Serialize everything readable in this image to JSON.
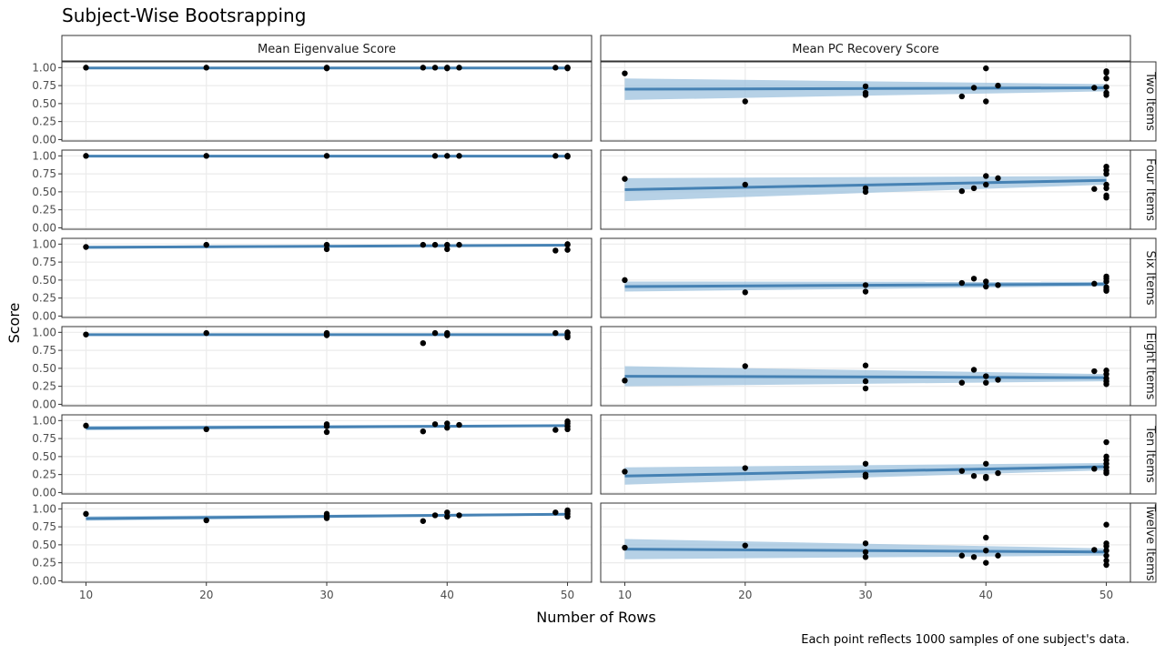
{
  "chart_data": {
    "type": "scatter",
    "title": "Subject-Wise Bootsrapping",
    "xlabel": "Number of Rows",
    "ylabel": "Score",
    "caption": "Each point reflects 1000 samples of one subject's data.",
    "xlim": [
      8,
      52
    ],
    "ylim": [
      -0.02,
      1.08
    ],
    "x_ticks": [
      "10",
      "20",
      "30",
      "40",
      "50"
    ],
    "y_ticks": [
      "0.00",
      "0.25",
      "0.50",
      "0.75",
      "1.00"
    ],
    "grid": true,
    "columns": [
      "Mean Eigenvalue Score",
      "Mean PC Recovery Score"
    ],
    "rows": [
      "Two Items",
      "Four Items",
      "Six Items",
      "Eight Items",
      "Ten Items",
      "Twelve Items"
    ],
    "colors": {
      "fit_line": "#4682b4",
      "band": "#9ec1de",
      "point": "#000000",
      "strip_bg": "#ffffff",
      "grid": "#ebebeb"
    },
    "panels": [
      {
        "row": "Two Items",
        "column": "Mean Eigenvalue Score",
        "points": [
          [
            10,
            1.0
          ],
          [
            20,
            1.0
          ],
          [
            30,
            1.0
          ],
          [
            30,
            0.99
          ],
          [
            38,
            1.0
          ],
          [
            39,
            1.0
          ],
          [
            40,
            1.0
          ],
          [
            40,
            0.99
          ],
          [
            41,
            1.0
          ],
          [
            49,
            1.0
          ],
          [
            50,
            1.0
          ],
          [
            50,
            1.0
          ],
          [
            50,
            0.99
          ],
          [
            50,
            1.0
          ]
        ],
        "fit": {
          "start": 0.995,
          "end": 0.995,
          "band_start": 0.005,
          "band_end": 0.005
        }
      },
      {
        "row": "Two Items",
        "column": "Mean PC Recovery Score",
        "points": [
          [
            10,
            0.92
          ],
          [
            20,
            0.53
          ],
          [
            30,
            0.74
          ],
          [
            30,
            0.62
          ],
          [
            30,
            0.65
          ],
          [
            38,
            0.6
          ],
          [
            39,
            0.72
          ],
          [
            40,
            0.99
          ],
          [
            40,
            0.53
          ],
          [
            41,
            0.75
          ],
          [
            49,
            0.72
          ],
          [
            50,
            0.95
          ],
          [
            50,
            0.93
          ],
          [
            50,
            0.85
          ],
          [
            50,
            0.73
          ],
          [
            50,
            0.65
          ],
          [
            50,
            0.62
          ]
        ],
        "fit": {
          "start": 0.7,
          "end": 0.72,
          "band_start": 0.15,
          "band_end": 0.05
        }
      },
      {
        "row": "Four Items",
        "column": "Mean Eigenvalue Score",
        "points": [
          [
            10,
            1.0
          ],
          [
            20,
            1.0
          ],
          [
            30,
            1.0
          ],
          [
            39,
            1.0
          ],
          [
            40,
            1.0
          ],
          [
            41,
            1.0
          ],
          [
            49,
            1.0
          ],
          [
            50,
            1.0
          ],
          [
            50,
            0.99
          ],
          [
            50,
            1.0
          ]
        ],
        "fit": {
          "start": 0.997,
          "end": 0.997,
          "band_start": 0.004,
          "band_end": 0.004
        }
      },
      {
        "row": "Four Items",
        "column": "Mean PC Recovery Score",
        "points": [
          [
            10,
            0.68
          ],
          [
            20,
            0.6
          ],
          [
            30,
            0.55
          ],
          [
            30,
            0.5
          ],
          [
            38,
            0.51
          ],
          [
            39,
            0.55
          ],
          [
            40,
            0.72
          ],
          [
            40,
            0.6
          ],
          [
            41,
            0.69
          ],
          [
            49,
            0.54
          ],
          [
            50,
            0.85
          ],
          [
            50,
            0.8
          ],
          [
            50,
            0.75
          ],
          [
            50,
            0.6
          ],
          [
            50,
            0.55
          ],
          [
            50,
            0.45
          ],
          [
            50,
            0.42
          ]
        ],
        "fit": {
          "start": 0.53,
          "end": 0.66,
          "band_start": 0.16,
          "band_end": 0.06
        }
      },
      {
        "row": "Six Items",
        "column": "Mean Eigenvalue Score",
        "points": [
          [
            10,
            0.96
          ],
          [
            20,
            0.99
          ],
          [
            30,
            0.99
          ],
          [
            30,
            0.93
          ],
          [
            38,
            0.99
          ],
          [
            39,
            0.99
          ],
          [
            40,
            0.99
          ],
          [
            40,
            0.93
          ],
          [
            41,
            0.99
          ],
          [
            49,
            0.91
          ],
          [
            50,
            1.0
          ],
          [
            50,
            0.99
          ],
          [
            50,
            0.92
          ]
        ],
        "fit": {
          "start": 0.955,
          "end": 0.985,
          "band_start": 0.02,
          "band_end": 0.012
        }
      },
      {
        "row": "Six Items",
        "column": "Mean PC Recovery Score",
        "points": [
          [
            10,
            0.5
          ],
          [
            20,
            0.33
          ],
          [
            30,
            0.43
          ],
          [
            30,
            0.34
          ],
          [
            38,
            0.46
          ],
          [
            39,
            0.52
          ],
          [
            40,
            0.48
          ],
          [
            40,
            0.41
          ],
          [
            41,
            0.43
          ],
          [
            49,
            0.45
          ],
          [
            50,
            0.55
          ],
          [
            50,
            0.52
          ],
          [
            50,
            0.48
          ],
          [
            50,
            0.4
          ],
          [
            50,
            0.37
          ],
          [
            50,
            0.35
          ]
        ],
        "fit": {
          "start": 0.41,
          "end": 0.445,
          "band_start": 0.07,
          "band_end": 0.03
        }
      },
      {
        "row": "Eight Items",
        "column": "Mean Eigenvalue Score",
        "points": [
          [
            10,
            0.97
          ],
          [
            20,
            0.99
          ],
          [
            30,
            0.99
          ],
          [
            30,
            0.96
          ],
          [
            38,
            0.85
          ],
          [
            39,
            0.99
          ],
          [
            40,
            0.99
          ],
          [
            40,
            0.96
          ],
          [
            49,
            0.99
          ],
          [
            50,
            1.0
          ],
          [
            50,
            0.99
          ],
          [
            50,
            0.95
          ],
          [
            50,
            0.93
          ]
        ],
        "fit": {
          "start": 0.968,
          "end": 0.968,
          "band_start": 0.012,
          "band_end": 0.008
        }
      },
      {
        "row": "Eight Items",
        "column": "Mean PC Recovery Score",
        "points": [
          [
            10,
            0.33
          ],
          [
            20,
            0.53
          ],
          [
            30,
            0.54
          ],
          [
            30,
            0.32
          ],
          [
            30,
            0.22
          ],
          [
            38,
            0.3
          ],
          [
            39,
            0.48
          ],
          [
            40,
            0.39
          ],
          [
            40,
            0.3
          ],
          [
            41,
            0.34
          ],
          [
            49,
            0.46
          ],
          [
            50,
            0.47
          ],
          [
            50,
            0.42
          ],
          [
            50,
            0.36
          ],
          [
            50,
            0.32
          ],
          [
            50,
            0.28
          ]
        ],
        "fit": {
          "start": 0.39,
          "end": 0.37,
          "band_start": 0.14,
          "band_end": 0.05
        }
      },
      {
        "row": "Ten Items",
        "column": "Mean Eigenvalue Score",
        "points": [
          [
            10,
            0.93
          ],
          [
            20,
            0.88
          ],
          [
            30,
            0.95
          ],
          [
            30,
            0.92
          ],
          [
            30,
            0.84
          ],
          [
            38,
            0.85
          ],
          [
            39,
            0.95
          ],
          [
            40,
            0.96
          ],
          [
            40,
            0.9
          ],
          [
            41,
            0.94
          ],
          [
            49,
            0.87
          ],
          [
            50,
            0.99
          ],
          [
            50,
            0.96
          ],
          [
            50,
            0.92
          ],
          [
            50,
            0.88
          ]
        ],
        "fit": {
          "start": 0.895,
          "end": 0.93,
          "band_start": 0.03,
          "band_end": 0.015
        }
      },
      {
        "row": "Ten Items",
        "column": "Mean PC Recovery Score",
        "points": [
          [
            10,
            0.29
          ],
          [
            20,
            0.34
          ],
          [
            30,
            0.4
          ],
          [
            30,
            0.25
          ],
          [
            30,
            0.22
          ],
          [
            38,
            0.3
          ],
          [
            39,
            0.23
          ],
          [
            40,
            0.4
          ],
          [
            40,
            0.22
          ],
          [
            40,
            0.2
          ],
          [
            41,
            0.27
          ],
          [
            49,
            0.33
          ],
          [
            50,
            0.7
          ],
          [
            50,
            0.5
          ],
          [
            50,
            0.45
          ],
          [
            50,
            0.4
          ],
          [
            50,
            0.35
          ],
          [
            50,
            0.3
          ],
          [
            50,
            0.27
          ]
        ],
        "fit": {
          "start": 0.23,
          "end": 0.36,
          "band_start": 0.12,
          "band_end": 0.05
        }
      },
      {
        "row": "Twelve Items",
        "column": "Mean Eigenvalue Score",
        "points": [
          [
            10,
            0.93
          ],
          [
            20,
            0.84
          ],
          [
            30,
            0.93
          ],
          [
            30,
            0.9
          ],
          [
            30,
            0.87
          ],
          [
            38,
            0.83
          ],
          [
            39,
            0.91
          ],
          [
            40,
            0.95
          ],
          [
            40,
            0.89
          ],
          [
            41,
            0.91
          ],
          [
            49,
            0.95
          ],
          [
            50,
            0.98
          ],
          [
            50,
            0.96
          ],
          [
            50,
            0.93
          ],
          [
            50,
            0.89
          ]
        ],
        "fit": {
          "start": 0.865,
          "end": 0.925,
          "band_start": 0.03,
          "band_end": 0.015
        }
      },
      {
        "row": "Twelve Items",
        "column": "Mean PC Recovery Score",
        "points": [
          [
            10,
            0.46
          ],
          [
            20,
            0.49
          ],
          [
            30,
            0.52
          ],
          [
            30,
            0.4
          ],
          [
            30,
            0.33
          ],
          [
            38,
            0.35
          ],
          [
            39,
            0.33
          ],
          [
            40,
            0.6
          ],
          [
            40,
            0.42
          ],
          [
            40,
            0.25
          ],
          [
            41,
            0.35
          ],
          [
            49,
            0.43
          ],
          [
            50,
            0.78
          ],
          [
            50,
            0.52
          ],
          [
            50,
            0.48
          ],
          [
            50,
            0.42
          ],
          [
            50,
            0.35
          ],
          [
            50,
            0.28
          ],
          [
            50,
            0.22
          ]
        ],
        "fit": {
          "start": 0.44,
          "end": 0.4,
          "band_start": 0.14,
          "band_end": 0.05
        }
      }
    ]
  }
}
